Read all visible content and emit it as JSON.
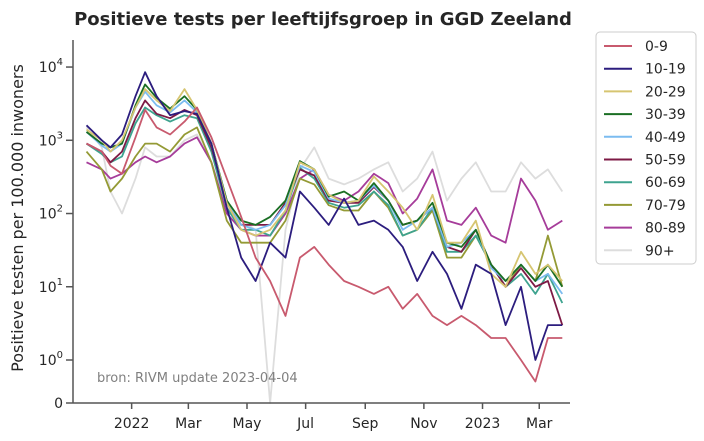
{
  "chart_data": {
    "type": "line",
    "title": "Positieve tests per leeftijfsgroep in GGD Zeeland",
    "ylabel": "Positieve testen per 100.000 inwoners",
    "xlabel": "",
    "source_note": "bron: RIVM update 2023-04-04",
    "y_scale": "symlog",
    "ylim": [
      0,
      20000
    ],
    "y_ticks": [
      {
        "value": 0,
        "label": "0"
      },
      {
        "value": 1,
        "base": "10",
        "exp": "0"
      },
      {
        "value": 10,
        "base": "10",
        "exp": "1"
      },
      {
        "value": 100,
        "base": "10",
        "exp": "2"
      },
      {
        "value": 1000,
        "base": "10",
        "exp": "3"
      },
      {
        "value": 10000,
        "base": "10",
        "exp": "4"
      }
    ],
    "x_range": [
      "2021-11-01",
      "2023-04-02"
    ],
    "x_ticks": [
      {
        "date": "2022-01-01",
        "label": "2022"
      },
      {
        "date": "2022-03-01",
        "label": "Mar"
      },
      {
        "date": "2022-05-01",
        "label": "May"
      },
      {
        "date": "2022-07-01",
        "label": "Jul"
      },
      {
        "date": "2022-09-01",
        "label": "Sep"
      },
      {
        "date": "2022-11-01",
        "label": "Nov"
      },
      {
        "date": "2023-01-01",
        "label": "2023"
      },
      {
        "date": "2023-03-01",
        "label": "Mar"
      }
    ],
    "x_dates": [
      "2021-11-15",
      "2021-12-01",
      "2021-12-10",
      "2021-12-22",
      "2022-01-05",
      "2022-01-15",
      "2022-01-27",
      "2022-02-10",
      "2022-02-25",
      "2022-03-10",
      "2022-03-25",
      "2022-04-10",
      "2022-04-25",
      "2022-05-10",
      "2022-05-25",
      "2022-06-10",
      "2022-06-25",
      "2022-07-10",
      "2022-07-25",
      "2022-08-10",
      "2022-08-25",
      "2022-09-10",
      "2022-09-25",
      "2022-10-10",
      "2022-10-25",
      "2022-11-10",
      "2022-11-25",
      "2022-12-10",
      "2022-12-25",
      "2023-01-10",
      "2023-01-25",
      "2023-02-10",
      "2023-02-25",
      "2023-03-10",
      "2023-03-25"
    ],
    "legend_position": "outside-right",
    "grid": false,
    "series": [
      {
        "name": "0-9",
        "color": "#c85a6e",
        "values": [
          900,
          700,
          450,
          350,
          1100,
          2600,
          1500,
          1200,
          1800,
          2800,
          1100,
          300,
          90,
          25,
          12,
          4,
          25,
          35,
          20,
          12,
          10,
          8,
          10,
          5,
          8,
          4,
          3,
          4,
          3,
          2,
          2,
          1,
          0.5,
          2,
          2
        ]
      },
      {
        "name": "10-19",
        "color": "#2c1d7e",
        "values": [
          1600,
          1000,
          800,
          1200,
          4000,
          8500,
          4000,
          2200,
          2500,
          2300,
          900,
          120,
          25,
          12,
          40,
          25,
          200,
          120,
          70,
          160,
          70,
          80,
          60,
          35,
          12,
          30,
          15,
          5,
          20,
          15,
          3,
          10,
          1,
          3,
          3
        ]
      },
      {
        "name": "20-29",
        "color": "#d6c571",
        "values": [
          1400,
          1000,
          700,
          1000,
          2800,
          5000,
          3500,
          2500,
          5000,
          2600,
          900,
          140,
          60,
          50,
          60,
          110,
          500,
          400,
          180,
          140,
          150,
          320,
          200,
          120,
          60,
          180,
          40,
          40,
          80,
          15,
          10,
          30,
          15,
          20,
          12
        ]
      },
      {
        "name": "30-39",
        "color": "#1a6e23",
        "values": [
          1300,
          900,
          800,
          900,
          3000,
          5800,
          3800,
          2700,
          4000,
          2600,
          900,
          150,
          80,
          70,
          90,
          150,
          520,
          400,
          170,
          200,
          150,
          260,
          150,
          70,
          80,
          140,
          40,
          35,
          60,
          20,
          12,
          20,
          12,
          20,
          10
        ]
      },
      {
        "name": "40-49",
        "color": "#7bbcf0",
        "values": [
          1300,
          850,
          700,
          900,
          2800,
          4600,
          3000,
          2400,
          3500,
          2400,
          900,
          150,
          70,
          60,
          70,
          130,
          450,
          370,
          160,
          140,
          150,
          240,
          150,
          60,
          80,
          120,
          35,
          40,
          60,
          18,
          12,
          20,
          12,
          15,
          8
        ]
      },
      {
        "name": "50-59",
        "color": "#7d1a45",
        "values": [
          900,
          700,
          500,
          700,
          2000,
          3500,
          2300,
          2000,
          2600,
          2200,
          800,
          150,
          70,
          70,
          70,
          140,
          400,
          330,
          150,
          140,
          140,
          230,
          150,
          70,
          80,
          120,
          35,
          30,
          60,
          20,
          10,
          18,
          10,
          12,
          3
        ]
      },
      {
        "name": "60-69",
        "color": "#3ea38f",
        "values": [
          900,
          650,
          500,
          600,
          1700,
          2800,
          2200,
          1800,
          2200,
          2000,
          700,
          120,
          60,
          60,
          50,
          110,
          420,
          300,
          140,
          120,
          130,
          200,
          130,
          50,
          60,
          120,
          30,
          30,
          50,
          20,
          10,
          15,
          8,
          15,
          6
        ]
      },
      {
        "name": "70-79",
        "color": "#949a35",
        "values": [
          700,
          400,
          200,
          300,
          600,
          900,
          900,
          700,
          1200,
          1500,
          500,
          80,
          40,
          40,
          40,
          80,
          300,
          250,
          130,
          110,
          110,
          200,
          120,
          50,
          60,
          110,
          25,
          25,
          50,
          20,
          10,
          20,
          12,
          50,
          10
        ]
      },
      {
        "name": "80-89",
        "color": "#a63c9a",
        "values": [
          500,
          400,
          300,
          350,
          500,
          600,
          500,
          600,
          900,
          1100,
          500,
          100,
          60,
          50,
          50,
          100,
          300,
          400,
          180,
          150,
          200,
          350,
          260,
          100,
          160,
          400,
          80,
          70,
          120,
          50,
          40,
          300,
          150,
          60,
          80
        ]
      },
      {
        "name": "90+",
        "color": "#dddddd",
        "values": [
          1500,
          800,
          200,
          100,
          300,
          800,
          600,
          600,
          1000,
          1200,
          500,
          120,
          80,
          60,
          0,
          60,
          400,
          800,
          300,
          250,
          300,
          400,
          500,
          200,
          300,
          700,
          150,
          300,
          500,
          200,
          200,
          500,
          300,
          400,
          200
        ]
      }
    ]
  }
}
